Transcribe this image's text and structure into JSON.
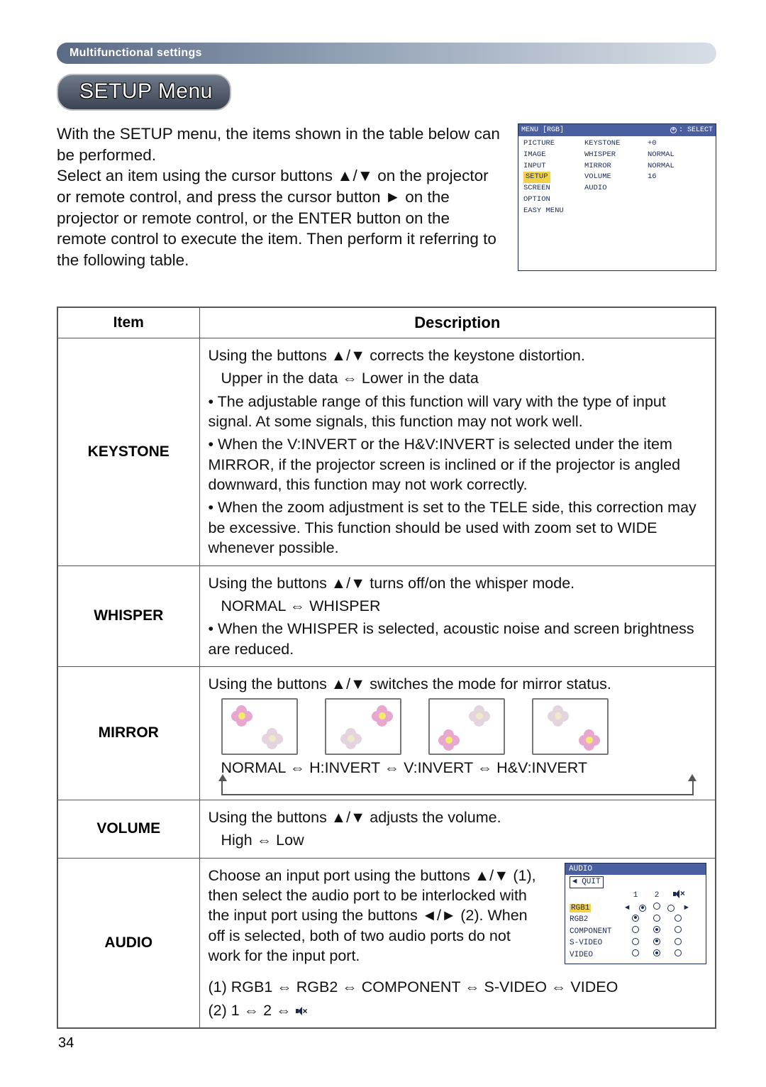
{
  "header": {
    "label": "Multifunctional settings"
  },
  "title": {
    "label": "SETUP Menu"
  },
  "intro": {
    "text": "With the SETUP menu, the items shown in the table below can be performed.\nSelect an item using the cursor buttons ▲/▼ on the projector or remote control, and press the cursor button ► on the projector or remote control, or the ENTER button on the remote control to execute the item. Then perform it referring to the following table."
  },
  "osd": {
    "top_left": "MENU [RGB]",
    "top_right": ": SELECT",
    "col1": [
      "PICTURE",
      "IMAGE",
      "INPUT",
      "SETUP",
      "SCREEN",
      "OPTION",
      "EASY MENU"
    ],
    "highlight_row": "SETUP",
    "col2": [
      "KEYSTONE",
      "WHISPER",
      "MIRROR",
      "VOLUME",
      "AUDIO"
    ],
    "col3": [
      "+0",
      "NORMAL",
      "NORMAL",
      "16",
      ""
    ],
    "colors": {
      "border": "#1a2a55",
      "header_bg": "#4a5fa0",
      "highlight_bg": "#f3d24a"
    }
  },
  "table": {
    "headers": {
      "item": "Item",
      "description": "Description"
    },
    "rows": [
      {
        "item": "KEYSTONE",
        "lines": [
          "Using the buttons ▲/▼ corrects the keystone distortion.",
          "Upper in the data ⇔ Lower in the data",
          "• The adjustable range of this function will vary with the type of input signal. At some signals, this function may not work well.",
          "• When the V:INVERT or the H&V:INVERT is selected under the item MIRROR, if the projector screen is inclined or if the projector is angled downward, this function may not work correctly.",
          "• When the zoom adjustment is set to the TELE side, this correction may be excessive. This function should be used with zoom set to WIDE whenever possible."
        ],
        "indent_indices": [
          1
        ]
      },
      {
        "item": "WHISPER",
        "lines": [
          "Using the buttons ▲/▼ turns off/on the whisper mode.",
          "NORMAL ⇔ WHISPER",
          "• When the WHISPER is selected, acoustic noise and screen brightness are reduced."
        ],
        "indent_indices": [
          1
        ]
      },
      {
        "item": "MIRROR",
        "line_top": "Using the buttons ▲/▼ switches the mode for mirror status.",
        "modes_line": "NORMAL ⇔ H:INVERT ⇔ V:INVERT ⇔ H&V:INVERT",
        "flower": {
          "petal_color": "#e8a7cf",
          "center_color": "#f5e96b",
          "fade_petal_color": "#e3d4de",
          "fade_center_color": "#efe9c9",
          "cards": [
            {
              "pos": [
                {
                  "x": 12,
                  "y": 8,
                  "fade": false
                },
                {
                  "x": 55,
                  "y": 40,
                  "fade": true
                }
              ]
            },
            {
              "pos": [
                {
                  "x": 64,
                  "y": 8,
                  "fade": false
                },
                {
                  "x": 20,
                  "y": 40,
                  "fade": true
                }
              ]
            },
            {
              "pos": [
                {
                  "x": 12,
                  "y": 42,
                  "fade": false
                },
                {
                  "x": 55,
                  "y": 8,
                  "fade": true
                }
              ]
            },
            {
              "pos": [
                {
                  "x": 64,
                  "y": 42,
                  "fade": false
                },
                {
                  "x": 20,
                  "y": 8,
                  "fade": true
                }
              ]
            }
          ]
        }
      },
      {
        "item": "VOLUME",
        "lines": [
          "Using the buttons ▲/▼ adjusts the volume.",
          "High ⇔ Low"
        ],
        "indent_indices": [
          1
        ]
      },
      {
        "item": "AUDIO",
        "text": "Choose an input port using the buttons ▲/▼ (1), then select the audio port to be interlocked with the input port using the buttons ◄/► (2). When off is selected, both of two audio ports do not work for the input port.",
        "line2": "(1)  RGB1 ⇔ RGB2 ⇔ COMPONENT ⇔ S-VIDEO ⇔ VIDEO",
        "line3_prefix": "(2)  1 ⇔ 2 ⇔ ",
        "osd": {
          "title": "AUDIO",
          "quit": "◄ QUIT",
          "head_1": "1",
          "head_2": "2",
          "rows": [
            {
              "label": "RGB1",
              "sel": 0,
              "hl": true,
              "arrows": true
            },
            {
              "label": "RGB2",
              "sel": 0
            },
            {
              "label": "COMPONENT",
              "sel": 1
            },
            {
              "label": "S-VIDEO",
              "sel": 1
            },
            {
              "label": "VIDEO",
              "sel": 1
            }
          ]
        }
      }
    ]
  },
  "page_number": "34"
}
